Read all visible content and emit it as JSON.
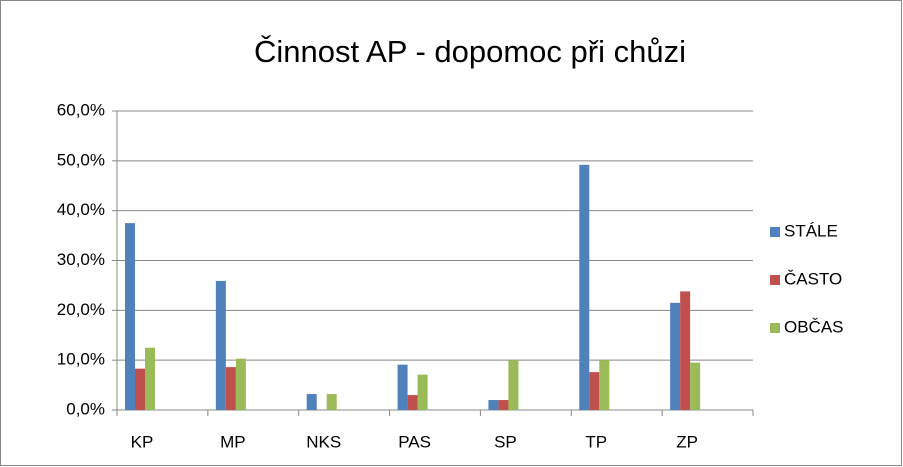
{
  "chart_data": {
    "type": "bar",
    "title": "Činnost AP - dopomoc při chůzi",
    "categories": [
      "KP",
      "MP",
      "NKS",
      "PAS",
      "SP",
      "TP",
      "ZP"
    ],
    "series": [
      {
        "name": "STÁLE",
        "color": "#4f81bd",
        "values": [
          37.5,
          25.9,
          3.2,
          9.1,
          2.0,
          49.2,
          21.5
        ]
      },
      {
        "name": "ČASTO",
        "color": "#c0504d",
        "values": [
          8.3,
          8.6,
          0,
          3.0,
          2.0,
          7.6,
          23.8
        ]
      },
      {
        "name": "OBČAS",
        "color": "#9bbb59",
        "values": [
          12.5,
          10.3,
          3.2,
          7.1,
          10.0,
          10.0,
          9.5
        ]
      }
    ],
    "ylim": [
      0,
      60
    ],
    "yticks": [
      {
        "value": 0,
        "label": "0,0%"
      },
      {
        "value": 10,
        "label": "10,0%"
      },
      {
        "value": 20,
        "label": "20,0%"
      },
      {
        "value": 30,
        "label": "30,0%"
      },
      {
        "value": 40,
        "label": "40,0%"
      },
      {
        "value": 50,
        "label": "50,0%"
      },
      {
        "value": 60,
        "label": "60,0%"
      }
    ],
    "grid": true,
    "legend": "right"
  }
}
